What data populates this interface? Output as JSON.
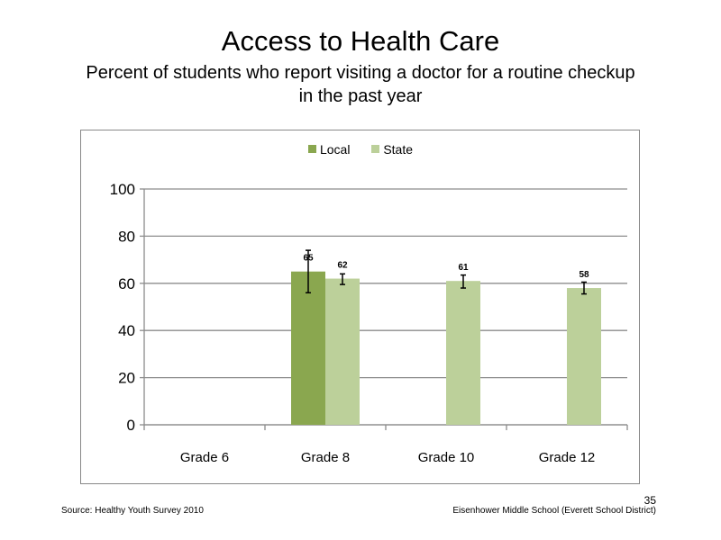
{
  "slide": {
    "title": "Access to Health Care",
    "subtitle": "Percent of students who report visiting a doctor for a routine checkup in the past year",
    "source": "Source: Healthy Youth Survey 2010",
    "school": "Eisenhower Middle School (Everett School District)",
    "page_number": "35"
  },
  "chart_data": {
    "type": "bar",
    "categories": [
      "Grade 6",
      "Grade 8",
      "Grade 10",
      "Grade 12"
    ],
    "series": [
      {
        "name": "Local",
        "color": "#8aa74f",
        "values": [
          null,
          65,
          null,
          null
        ],
        "labels": [
          null,
          "65",
          null,
          null
        ],
        "error": [
          null,
          [
            56,
            74
          ],
          null,
          null
        ]
      },
      {
        "name": "State",
        "color": "#bcd09a",
        "values": [
          null,
          62,
          61,
          58
        ],
        "labels": [
          null,
          "62",
          "61",
          "58"
        ],
        "error": [
          null,
          [
            59.5,
            64
          ],
          [
            58,
            63.5
          ],
          [
            55.5,
            60.5
          ]
        ]
      }
    ],
    "ylim": [
      0,
      100
    ],
    "yticks": [
      0,
      20,
      40,
      60,
      80,
      100
    ],
    "ytick_labels": [
      "0",
      "20",
      "40",
      "60",
      "80",
      "100"
    ],
    "grid": true,
    "legend": "top-center"
  }
}
